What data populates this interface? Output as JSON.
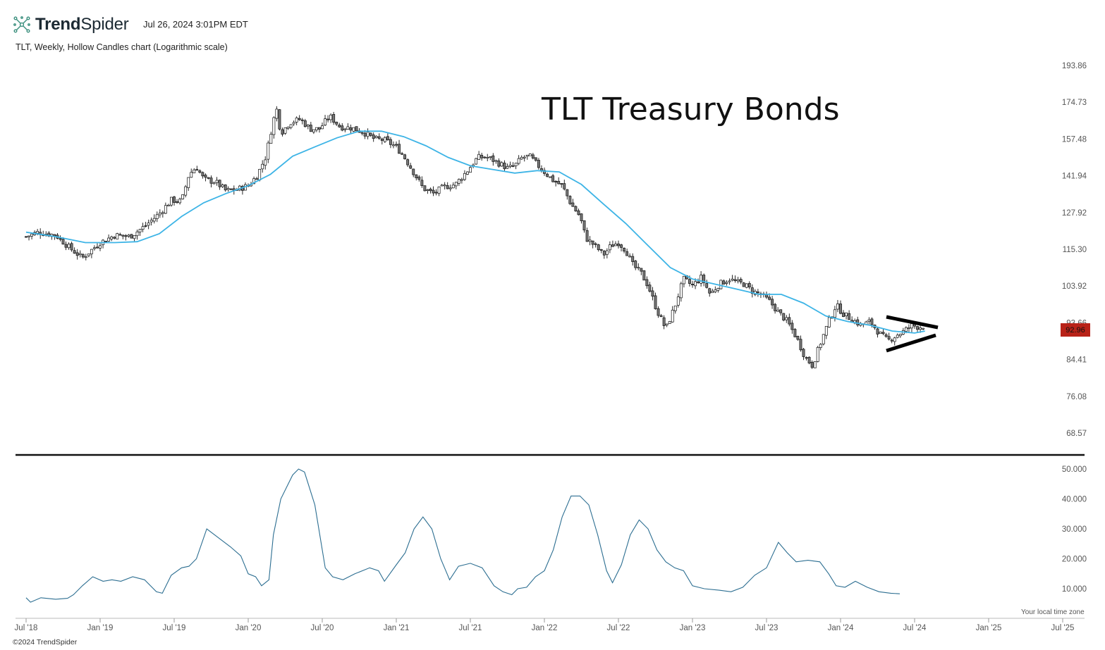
{
  "header": {
    "brand_bold": "Trend",
    "brand_regular": "Spider",
    "timestamp": "Jul 26, 2024 3:01PM EDT",
    "subtitle": "TLT, Weekly, Hollow Candles chart (Logarithmic scale)"
  },
  "footer": {
    "copyright": "©2024 TrendSpider",
    "timezone_note": "Your local time zone"
  },
  "colors": {
    "candle": "#111111",
    "moving_average": "#3db4e6",
    "indicator_line": "#2c6e91",
    "price_tag": "#b82218",
    "annotation": "#000000"
  },
  "chart_data": [
    {
      "type": "candlestick",
      "title": "TLT Treasury Bonds",
      "scale": "logarithmic",
      "y_ticks": [
        "193.86",
        "174.73",
        "157.48",
        "141.94",
        "127.92",
        "115.30",
        "103.92",
        "93.66",
        "84.41",
        "76.08",
        "68.57"
      ],
      "ylim": [
        68.57,
        193.86
      ],
      "current_price": "92.96",
      "x_ticks": [
        "Jul '18",
        "Jan '19",
        "Jul '19",
        "Jan '20",
        "Jul '20",
        "Jan '21",
        "Jul '21",
        "Jan '22",
        "Jul '22",
        "Jan '23",
        "Jul '23",
        "Jan '24",
        "Jul '24",
        "Jan '25",
        "Jul '25"
      ],
      "x_tick_dates": [
        2018.5,
        2019.0,
        2019.5,
        2020.0,
        2020.5,
        2021.0,
        2021.5,
        2022.0,
        2022.5,
        2023.0,
        2023.5,
        2024.0,
        2024.5,
        2025.0,
        2025.5
      ],
      "close_path": [
        [
          2018.5,
          119.5
        ],
        [
          2018.58,
          121.0
        ],
        [
          2018.7,
          120.0
        ],
        [
          2018.8,
          115.5
        ],
        [
          2018.88,
          112.5
        ],
        [
          2019.0,
          117.5
        ],
        [
          2019.1,
          120.0
        ],
        [
          2019.2,
          119.5
        ],
        [
          2019.3,
          123.0
        ],
        [
          2019.4,
          127.5
        ],
        [
          2019.48,
          132.5
        ],
        [
          2019.55,
          132.0
        ],
        [
          2019.6,
          142.5
        ],
        [
          2019.65,
          145.5
        ],
        [
          2019.7,
          140.5
        ],
        [
          2019.78,
          139.5
        ],
        [
          2019.85,
          136.0
        ],
        [
          2019.92,
          136.5
        ],
        [
          2020.0,
          138.0
        ],
        [
          2020.06,
          142.0
        ],
        [
          2020.12,
          150.0
        ],
        [
          2020.16,
          163.0
        ],
        [
          2020.19,
          172.0
        ],
        [
          2020.22,
          160.0
        ],
        [
          2020.28,
          165.0
        ],
        [
          2020.35,
          166.5
        ],
        [
          2020.42,
          162.0
        ],
        [
          2020.48,
          162.0
        ],
        [
          2020.55,
          168.0
        ],
        [
          2020.62,
          163.0
        ],
        [
          2020.7,
          162.5
        ],
        [
          2020.78,
          160.5
        ],
        [
          2020.85,
          157.5
        ],
        [
          2020.92,
          157.0
        ],
        [
          2021.0,
          154.0
        ],
        [
          2021.05,
          150.0
        ],
        [
          2021.12,
          143.0
        ],
        [
          2021.18,
          137.0
        ],
        [
          2021.25,
          135.0
        ],
        [
          2021.32,
          137.5
        ],
        [
          2021.4,
          138.5
        ],
        [
          2021.48,
          144.0
        ],
        [
          2021.55,
          149.5
        ],
        [
          2021.62,
          149.5
        ],
        [
          2021.68,
          147.5
        ],
        [
          2021.75,
          145.0
        ],
        [
          2021.8,
          146.0
        ],
        [
          2021.85,
          149.5
        ],
        [
          2021.9,
          150.0
        ],
        [
          2021.95,
          146.5
        ],
        [
          2022.0,
          143.5
        ],
        [
          2022.06,
          140.0
        ],
        [
          2022.12,
          138.0
        ],
        [
          2022.18,
          131.0
        ],
        [
          2022.24,
          126.5
        ],
        [
          2022.28,
          119.0
        ],
        [
          2022.34,
          116.5
        ],
        [
          2022.4,
          113.5
        ],
        [
          2022.45,
          116.5
        ],
        [
          2022.5,
          117.5
        ],
        [
          2022.55,
          115.0
        ],
        [
          2022.6,
          110.0
        ],
        [
          2022.65,
          108.0
        ],
        [
          2022.7,
          104.0
        ],
        [
          2022.76,
          97.0
        ],
        [
          2022.82,
          92.0
        ],
        [
          2022.88,
          98.0
        ],
        [
          2022.94,
          106.0
        ],
        [
          2023.0,
          104.0
        ],
        [
          2023.06,
          106.5
        ],
        [
          2023.12,
          101.5
        ],
        [
          2023.18,
          104.5
        ],
        [
          2023.25,
          106.0
        ],
        [
          2023.3,
          105.0
        ],
        [
          2023.35,
          104.5
        ],
        [
          2023.4,
          102.5
        ],
        [
          2023.46,
          101.5
        ],
        [
          2023.52,
          99.5
        ],
        [
          2023.58,
          96.5
        ],
        [
          2023.64,
          94.0
        ],
        [
          2023.7,
          90.0
        ],
        [
          2023.76,
          85.0
        ],
        [
          2023.81,
          83.0
        ],
        [
          2023.86,
          88.0
        ],
        [
          2023.92,
          94.0
        ],
        [
          2023.97,
          98.5
        ],
        [
          2024.02,
          96.0
        ],
        [
          2024.08,
          94.5
        ],
        [
          2024.14,
          93.0
        ],
        [
          2024.2,
          94.0
        ],
        [
          2024.26,
          91.0
        ],
        [
          2024.32,
          89.0
        ],
        [
          2024.38,
          90.5
        ],
        [
          2024.43,
          91.5
        ],
        [
          2024.48,
          93.0
        ],
        [
          2024.53,
          92.5
        ],
        [
          2024.57,
          92.96
        ]
      ],
      "moving_average": [
        [
          2018.5,
          121.0
        ],
        [
          2018.7,
          119.5
        ],
        [
          2018.9,
          117.5
        ],
        [
          2019.1,
          117.5
        ],
        [
          2019.25,
          117.8
        ],
        [
          2019.4,
          120.5
        ],
        [
          2019.55,
          126.5
        ],
        [
          2019.7,
          131.5
        ],
        [
          2019.85,
          135.0
        ],
        [
          2020.0,
          138.0
        ],
        [
          2020.15,
          142.5
        ],
        [
          2020.3,
          150.0
        ],
        [
          2020.45,
          154.0
        ],
        [
          2020.6,
          158.0
        ],
        [
          2020.75,
          161.0
        ],
        [
          2020.9,
          161.0
        ],
        [
          2021.05,
          158.5
        ],
        [
          2021.2,
          154.5
        ],
        [
          2021.35,
          149.5
        ],
        [
          2021.5,
          146.0
        ],
        [
          2021.65,
          144.5
        ],
        [
          2021.8,
          143.0
        ],
        [
          2021.95,
          144.0
        ],
        [
          2022.1,
          143.5
        ],
        [
          2022.25,
          138.5
        ],
        [
          2022.4,
          131.0
        ],
        [
          2022.55,
          124.0
        ],
        [
          2022.7,
          116.5
        ],
        [
          2022.85,
          109.5
        ],
        [
          2023.0,
          106.0
        ],
        [
          2023.15,
          104.5
        ],
        [
          2023.3,
          103.0
        ],
        [
          2023.45,
          101.5
        ],
        [
          2023.6,
          101.5
        ],
        [
          2023.75,
          99.0
        ],
        [
          2023.9,
          95.5
        ],
        [
          2024.05,
          94.0
        ],
        [
          2024.2,
          93.0
        ],
        [
          2024.35,
          91.5
        ],
        [
          2024.5,
          91.0
        ],
        [
          2024.57,
          91.5
        ]
      ],
      "annotation": "symmetrical triangle"
    },
    {
      "type": "line",
      "y_ticks": [
        "50.000",
        "40.000",
        "30.000",
        "20.000",
        "10.000"
      ],
      "ylim": [
        0,
        52
      ],
      "series": [
        [
          2018.5,
          7.0
        ],
        [
          2018.53,
          5.5
        ],
        [
          2018.6,
          7.0
        ],
        [
          2018.7,
          6.5
        ],
        [
          2018.78,
          6.8
        ],
        [
          2018.82,
          8.0
        ],
        [
          2018.88,
          11.0
        ],
        [
          2018.95,
          14.0
        ],
        [
          2019.02,
          12.5
        ],
        [
          2019.08,
          13.0
        ],
        [
          2019.14,
          12.5
        ],
        [
          2019.22,
          14.0
        ],
        [
          2019.3,
          13.0
        ],
        [
          2019.38,
          9.0
        ],
        [
          2019.42,
          8.5
        ],
        [
          2019.48,
          14.5
        ],
        [
          2019.55,
          17.0
        ],
        [
          2019.6,
          17.5
        ],
        [
          2019.65,
          20.0
        ],
        [
          2019.72,
          30.0
        ],
        [
          2019.8,
          27.0
        ],
        [
          2019.88,
          24.0
        ],
        [
          2019.95,
          21.0
        ],
        [
          2020.0,
          15.0
        ],
        [
          2020.05,
          14.0
        ],
        [
          2020.09,
          11.0
        ],
        [
          2020.14,
          13.0
        ],
        [
          2020.17,
          28.0
        ],
        [
          2020.22,
          40.0
        ],
        [
          2020.3,
          48.0
        ],
        [
          2020.34,
          50.0
        ],
        [
          2020.38,
          49.0
        ],
        [
          2020.45,
          38.0
        ],
        [
          2020.52,
          17.0
        ],
        [
          2020.57,
          14.0
        ],
        [
          2020.64,
          13.0
        ],
        [
          2020.72,
          15.0
        ],
        [
          2020.82,
          17.0
        ],
        [
          2020.88,
          16.0
        ],
        [
          2020.92,
          12.5
        ],
        [
          2021.0,
          18.0
        ],
        [
          2021.06,
          22.0
        ],
        [
          2021.12,
          30.0
        ],
        [
          2021.18,
          34.0
        ],
        [
          2021.24,
          30.0
        ],
        [
          2021.3,
          20.0
        ],
        [
          2021.36,
          13.0
        ],
        [
          2021.42,
          17.5
        ],
        [
          2021.5,
          18.5
        ],
        [
          2021.58,
          17.0
        ],
        [
          2021.66,
          11.0
        ],
        [
          2021.72,
          9.0
        ],
        [
          2021.78,
          8.0
        ],
        [
          2021.82,
          10.0
        ],
        [
          2021.88,
          10.5
        ],
        [
          2021.94,
          14.0
        ],
        [
          2022.0,
          16.0
        ],
        [
          2022.06,
          23.0
        ],
        [
          2022.12,
          34.0
        ],
        [
          2022.18,
          41.0
        ],
        [
          2022.24,
          41.0
        ],
        [
          2022.3,
          38.0
        ],
        [
          2022.36,
          28.0
        ],
        [
          2022.42,
          16.0
        ],
        [
          2022.46,
          12.0
        ],
        [
          2022.52,
          18.0
        ],
        [
          2022.58,
          28.0
        ],
        [
          2022.64,
          33.0
        ],
        [
          2022.7,
          30.0
        ],
        [
          2022.76,
          23.0
        ],
        [
          2022.82,
          19.0
        ],
        [
          2022.88,
          17.0
        ],
        [
          2022.94,
          16.0
        ],
        [
          2023.0,
          11.0
        ],
        [
          2023.08,
          10.0
        ],
        [
          2023.18,
          9.5
        ],
        [
          2023.26,
          9.0
        ],
        [
          2023.34,
          10.5
        ],
        [
          2023.42,
          14.5
        ],
        [
          2023.5,
          17.0
        ],
        [
          2023.58,
          25.5
        ],
        [
          2023.64,
          22.0
        ],
        [
          2023.7,
          19.0
        ],
        [
          2023.78,
          19.5
        ],
        [
          2023.86,
          19.0
        ],
        [
          2023.92,
          15.0
        ],
        [
          2023.97,
          11.0
        ],
        [
          2024.03,
          10.5
        ],
        [
          2024.1,
          12.5
        ],
        [
          2024.18,
          10.5
        ],
        [
          2024.26,
          9.0
        ],
        [
          2024.34,
          8.5
        ],
        [
          2024.4,
          8.3
        ]
      ]
    }
  ]
}
